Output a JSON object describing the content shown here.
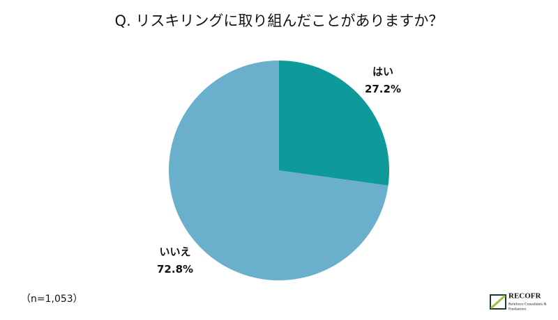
{
  "chart_data": {
    "type": "pie",
    "title": "Q. リスキリングに取り組んだことがありますか？",
    "categories": [
      "はい",
      "いいえ"
    ],
    "values": [
      27.2,
      72.8
    ],
    "value_labels": [
      "27.2%",
      "72.8%"
    ],
    "colors": [
      "#0e9a9b",
      "#6aafcc"
    ],
    "note": "（n=1,053）"
  },
  "logo": {
    "name": "RECOFR",
    "tagline_1": "Reinforce Consultants &",
    "tagline_2": "Freelancers"
  }
}
